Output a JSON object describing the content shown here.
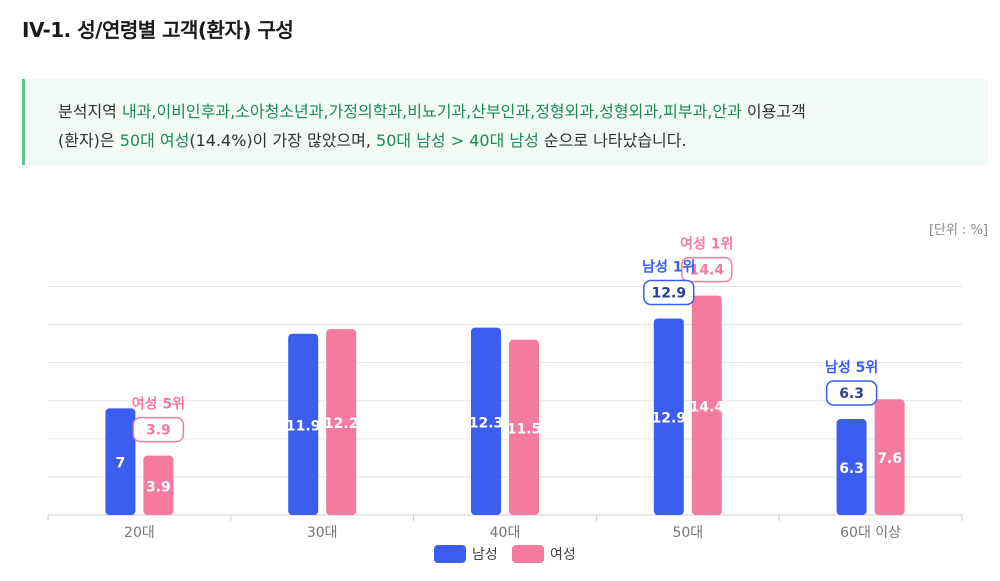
{
  "title": "IV-1. 성/연령별 고객(환자) 구성",
  "summary": {
    "line1": [
      {
        "t": "분석지역 ",
        "g": false
      },
      {
        "t": "내과,이비인후과,소아청소년과,가정의학과,비뇨기과,산부인과,정형외과,성형외과,피부과,안과",
        "g": true
      },
      {
        "t": " 이용고객",
        "g": false
      }
    ],
    "line2": [
      {
        "t": "(환자)은 ",
        "g": false
      },
      {
        "t": "50대 여성",
        "g": true
      },
      {
        "t": "(14.4%)이 가장 많았으며, ",
        "g": false
      },
      {
        "t": "50대 남성 > 40대 남성",
        "g": true
      },
      {
        "t": " 순으로 나타났습니다.",
        "g": false
      }
    ]
  },
  "unit_label": "[단위 : %]",
  "colors": {
    "male": "#3b5ef0",
    "female": "#f47aa0"
  },
  "chart_data": {
    "type": "bar",
    "categories": [
      "20대",
      "30대",
      "40대",
      "50대",
      "60대 이상"
    ],
    "series": [
      {
        "name": "남성",
        "values": [
          7,
          11.9,
          12.3,
          12.9,
          6.3
        ]
      },
      {
        "name": "여성",
        "values": [
          3.9,
          12.2,
          11.5,
          14.4,
          7.6
        ]
      }
    ],
    "ylim": [
      0,
      17
    ],
    "grid": true,
    "legend": "bottom",
    "annotations": [
      {
        "series": "여성",
        "category": "20대",
        "label": "여성 5위",
        "value": "3.9"
      },
      {
        "series": "여성",
        "category": "50대",
        "label": "여성 1위",
        "value": "14.4"
      },
      {
        "series": "남성",
        "category": "50대",
        "label": "남성 1위",
        "value": "12.9"
      },
      {
        "series": "남성",
        "category": "60대 이상",
        "label": "남성 5위",
        "value": "6.3"
      }
    ]
  }
}
